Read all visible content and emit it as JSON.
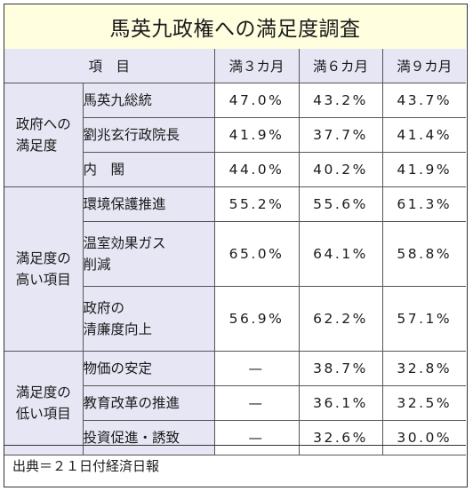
{
  "title": "馬英九政権への満足度調査",
  "headers": {
    "item": "項　目",
    "m3": "満３カ月",
    "m6": "満６カ月",
    "m9": "満９カ月"
  },
  "groups": [
    {
      "label_lines": [
        "政府への",
        "満足度"
      ],
      "rows": [
        {
          "item_lines": [
            "馬英九総統"
          ],
          "m3": "47.0%",
          "m6": "43.2%",
          "m9": "43.7%"
        },
        {
          "item_lines": [
            "劉兆玄行政院長"
          ],
          "m3": "41.9%",
          "m6": "37.7%",
          "m9": "41.4%"
        },
        {
          "item_lines": [
            "内　閣"
          ],
          "m3": "44.0%",
          "m6": "40.2%",
          "m9": "41.9%"
        }
      ]
    },
    {
      "label_lines": [
        "満足度の",
        "高い項目"
      ],
      "rows": [
        {
          "item_lines": [
            "環境保護推進"
          ],
          "m3": "55.2%",
          "m6": "55.6%",
          "m9": "61.3%"
        },
        {
          "item_lines": [
            "温室効果ガス",
            "削減"
          ],
          "m3": "65.0%",
          "m6": "64.1%",
          "m9": "58.8%"
        },
        {
          "item_lines": [
            "政府の",
            "清廉度向上"
          ],
          "m3": "56.9%",
          "m6": "62.2%",
          "m9": "57.1%"
        }
      ]
    },
    {
      "label_lines": [
        "満足度の",
        "低い項目"
      ],
      "rows": [
        {
          "item_lines": [
            "物価の安定"
          ],
          "m3": "—",
          "m6": "38.7%",
          "m9": "32.8%"
        },
        {
          "item_lines": [
            "教育改革の推進"
          ],
          "m3": "—",
          "m6": "36.1%",
          "m9": "32.5%"
        },
        {
          "item_lines": [
            "投資促進・誘致"
          ],
          "m3": "—",
          "m6": "32.6%",
          "m9": "30.0%"
        }
      ]
    }
  ],
  "source": "出典＝２１日付経済日報"
}
